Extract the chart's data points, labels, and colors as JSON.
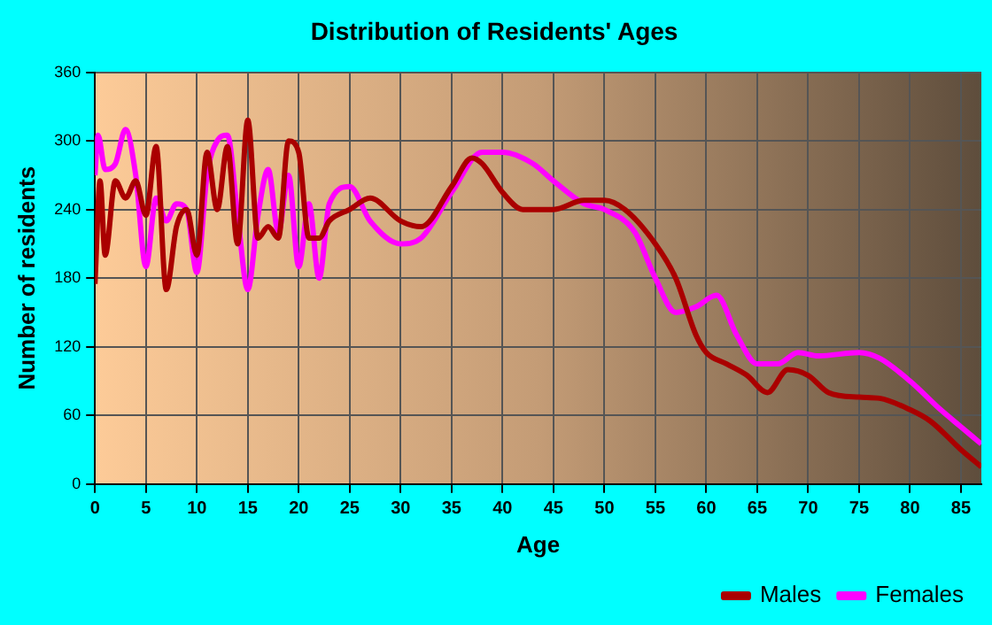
{
  "chart_data": {
    "type": "line",
    "title": "Distribution of Residents' Ages",
    "xlabel": "Age",
    "ylabel": "Number of residents",
    "xlim": [
      0,
      87
    ],
    "xticks": [
      0,
      5,
      10,
      15,
      20,
      25,
      30,
      35,
      40,
      45,
      50,
      55,
      60,
      65,
      70,
      75,
      80,
      85
    ],
    "ylim": [
      0,
      360
    ],
    "yticks": [
      0,
      60,
      120,
      180,
      240,
      300,
      360
    ],
    "grid": true,
    "legend": "bottom right",
    "marker": "none",
    "line_style": "solid",
    "series": [
      {
        "name": "Males",
        "color": "#aa0000",
        "x": [
          0,
          0.5,
          1,
          2,
          3,
          4,
          5,
          6,
          7,
          8,
          9,
          10,
          11,
          12,
          13,
          14,
          15,
          16,
          17,
          18,
          19,
          20,
          21,
          22,
          23,
          25,
          27,
          30,
          32,
          35,
          37,
          38,
          40,
          42,
          45,
          48,
          50,
          52,
          55,
          57,
          59,
          60,
          62,
          64,
          66,
          68,
          70,
          72,
          75,
          77,
          80,
          82,
          85,
          87
        ],
        "values": [
          175,
          265,
          200,
          265,
          250,
          265,
          235,
          295,
          170,
          225,
          240,
          200,
          290,
          240,
          295,
          210,
          318,
          215,
          225,
          215,
          300,
          290,
          215,
          215,
          230,
          240,
          250,
          230,
          225,
          260,
          285,
          280,
          255,
          240,
          240,
          248,
          248,
          240,
          210,
          180,
          130,
          115,
          105,
          95,
          80,
          100,
          95,
          80,
          76,
          75,
          65,
          55,
          30,
          15
        ]
      },
      {
        "name": "Females",
        "color": "#ff00ff",
        "x": [
          0,
          0.3,
          1,
          2,
          3,
          4,
          5,
          6,
          7,
          8,
          9,
          10,
          11,
          12,
          13,
          14,
          15,
          16,
          17,
          18,
          19,
          20,
          21,
          22,
          23,
          25,
          27,
          30,
          32,
          35,
          38,
          40,
          43,
          45,
          48,
          50,
          53,
          55,
          57,
          59,
          61,
          63,
          65,
          67,
          69,
          71,
          75,
          77,
          80,
          83,
          85,
          87
        ],
        "values": [
          270,
          305,
          275,
          280,
          310,
          270,
          190,
          250,
          230,
          245,
          240,
          185,
          270,
          300,
          305,
          235,
          170,
          235,
          275,
          220,
          270,
          190,
          245,
          180,
          245,
          260,
          230,
          210,
          215,
          255,
          290,
          290,
          280,
          265,
          245,
          240,
          220,
          180,
          150,
          155,
          165,
          130,
          105,
          105,
          115,
          112,
          115,
          110,
          90,
          65,
          50,
          35
        ]
      }
    ]
  }
}
